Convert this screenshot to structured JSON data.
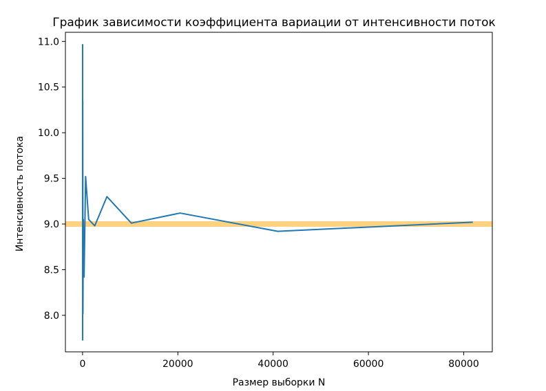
{
  "chart_data": {
    "type": "line",
    "title": "График зависимости коэффициента вариации от интенсивности поток",
    "xlabel": "Размер выборки N",
    "ylabel": "Интенсивность потока",
    "xlim": [
      -3600,
      86000
    ],
    "ylim": [
      7.6,
      11.1
    ],
    "xticks": [
      0,
      20000,
      40000,
      60000,
      80000
    ],
    "xtick_labels": [
      "0",
      "20000",
      "40000",
      "60000",
      "80000"
    ],
    "yticks": [
      8.0,
      8.5,
      9.0,
      9.5,
      10.0,
      10.5,
      11.0
    ],
    "ytick_labels": [
      "8.0",
      "8.5",
      "9.0",
      "9.5",
      "10.0",
      "10.5",
      "11.0"
    ],
    "grid": false,
    "reference_line": {
      "y": 9.0,
      "color": "#ffd27f"
    },
    "series": [
      {
        "color": "#1f77b4",
        "x": [
          10,
          20,
          40,
          80,
          160,
          320,
          640,
          1280,
          2560,
          5120,
          10240,
          20480,
          40960,
          81920
        ],
        "y": [
          10.97,
          7.73,
          10.35,
          8.02,
          9.05,
          8.42,
          9.52,
          9.05,
          8.98,
          9.3,
          9.01,
          9.12,
          8.92,
          9.02
        ]
      }
    ]
  }
}
